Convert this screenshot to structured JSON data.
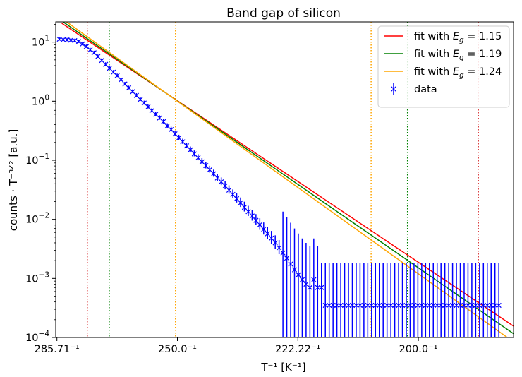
{
  "chart_data": {
    "type": "scatter",
    "title": "Band gap of silicon",
    "xlabel": "T⁻¹ [K⁻¹]",
    "ylabel": "counts · T⁻³ᐟ² [a.u.]",
    "x_ticks": [
      {
        "value": 0.0035,
        "label": "285.71⁻¹"
      },
      {
        "value": 0.004,
        "label": "250.0⁻¹"
      },
      {
        "value": 0.0045,
        "label": "222.22⁻¹"
      },
      {
        "value": 0.005,
        "label": "200.0⁻¹"
      }
    ],
    "y_ticks": [
      {
        "value": 0.0001,
        "base": "10",
        "exp": "−4"
      },
      {
        "value": 0.001,
        "base": "10",
        "exp": "−3"
      },
      {
        "value": 0.01,
        "base": "10",
        "exp": "−2"
      },
      {
        "value": 0.1,
        "base": "10",
        "exp": "−1"
      },
      {
        "value": 1,
        "base": "10",
        "exp": "0"
      },
      {
        "value": 10,
        "base": "10",
        "exp": "1"
      }
    ],
    "xlim": [
      0.003495,
      0.005395
    ],
    "ylim": [
      0.0001,
      22
    ],
    "yscale": "log",
    "grid": false,
    "legend_position": "top-right",
    "series": [
      {
        "name": "fit with E_g = 1.15",
        "kind": "line",
        "color": "#ff0000",
        "x": [
          0.00352,
          0.005395
        ],
        "y": [
          20.9,
          0.000156
        ]
      },
      {
        "name": "fit with E_g = 1.19",
        "kind": "line",
        "color": "#008000",
        "x": [
          0.00352,
          0.005395
        ],
        "y": [
          22.8,
          0.000116
        ]
      },
      {
        "name": "fit with E_g = 1.24",
        "kind": "line",
        "color": "#ffa500",
        "x": [
          0.00352,
          0.005395
        ],
        "y": [
          25.2,
          8.4e-05
        ]
      },
      {
        "name": "data",
        "kind": "errorbar",
        "color": "#0000ff",
        "x": [
          0.00351,
          0.003526,
          0.003542,
          0.003558,
          0.003574,
          0.00359,
          0.003606,
          0.003622,
          0.003638,
          0.003654,
          0.00367,
          0.003686,
          0.003702,
          0.003718,
          0.003734,
          0.00375,
          0.003766,
          0.003782,
          0.003798,
          0.003814,
          0.00383,
          0.003846,
          0.003862,
          0.003878,
          0.003894,
          0.00391,
          0.003926,
          0.003942,
          0.003958,
          0.003974,
          0.00399,
          0.004006,
          0.004022,
          0.004038,
          0.004054,
          0.00407,
          0.004086,
          0.004102,
          0.004118,
          0.004134,
          0.00415,
          0.004166,
          0.004182,
          0.004198,
          0.004214,
          0.00423,
          0.004246,
          0.004262,
          0.004278,
          0.004294,
          0.00431,
          0.004326,
          0.004342,
          0.004358,
          0.004374,
          0.00439,
          0.004406,
          0.004422,
          0.004438,
          0.004454,
          0.00447,
          0.004486,
          0.004502,
          0.004518,
          0.004534,
          0.00455,
          0.004566,
          0.004582,
          0.004598,
          0.004614,
          0.00463,
          0.004646,
          0.004662,
          0.004678,
          0.004694,
          0.00471,
          0.004726,
          0.004742,
          0.004758,
          0.004774,
          0.00479,
          0.004806,
          0.004822,
          0.004838,
          0.004854,
          0.00487,
          0.004886,
          0.004902,
          0.004918,
          0.004934,
          0.00495,
          0.004966,
          0.004982,
          0.004998,
          0.005014,
          0.00503,
          0.005046,
          0.005062,
          0.005078,
          0.005094,
          0.00511,
          0.005126,
          0.005142,
          0.005158,
          0.005174,
          0.00519,
          0.005206,
          0.005222,
          0.005238,
          0.005254,
          0.00527,
          0.005286,
          0.005302,
          0.005318,
          0.005334
        ],
        "y": [
          11.2,
          11.0,
          10.9,
          10.8,
          10.6,
          10.2,
          9.3,
          8.4,
          7.4,
          6.6,
          5.7,
          4.9,
          4.2,
          3.6,
          3.1,
          2.7,
          2.3,
          1.95,
          1.68,
          1.45,
          1.25,
          1.07,
          0.93,
          0.8,
          0.69,
          0.6,
          0.52,
          0.45,
          0.38,
          0.33,
          0.28,
          0.24,
          0.205,
          0.175,
          0.15,
          0.128,
          0.11,
          0.094,
          0.081,
          0.069,
          0.059,
          0.05,
          0.043,
          0.0368,
          0.0312,
          0.0264,
          0.0224,
          0.019,
          0.016,
          0.0135,
          0.0114,
          0.0096,
          0.0081,
          0.0068,
          0.0057,
          0.0048,
          0.004,
          0.0033,
          0.0027,
          0.0022,
          0.00175,
          0.0014,
          0.00115,
          0.00095,
          0.0008,
          0.0007,
          0.00095,
          0.0007,
          0.0007,
          0.00035,
          0.00035,
          0.00035,
          0.00035,
          0.00035,
          0.00035,
          0.00035,
          0.00035,
          0.00035,
          0.00035,
          0.00035,
          0.00035,
          0.00035,
          0.00035,
          0.00035,
          0.00035,
          0.00035,
          0.00035,
          0.00035,
          0.00035,
          0.00035,
          0.00035,
          0.00035,
          0.00035,
          0.00035,
          0.00035,
          0.00035,
          0.00035,
          0.00035,
          0.00035,
          0.00035,
          0.00035,
          0.00035,
          0.00035,
          0.00035,
          0.00035,
          0.00035,
          0.00035,
          0.00035,
          0.00035,
          0.00035,
          0.00035,
          0.00035,
          0.00035,
          0.00035,
          0.00035
        ],
        "yerr_low": [
          0.3,
          0.3,
          0.3,
          0.3,
          0.3,
          0.3,
          0.3,
          0.3,
          0.3,
          0.3,
          0.3,
          0.3,
          0.3,
          0.3,
          0.3,
          0.3,
          0.3,
          0.3,
          0.3,
          0.3,
          0.3,
          0.3,
          0.3,
          0.3,
          0.3,
          0.3,
          0.3,
          0.3,
          0.3,
          0.3,
          0.3,
          0.3,
          0.3,
          0.3,
          0.3,
          0.3,
          0.3,
          0.3,
          0.3,
          0.3,
          0.3,
          0.3,
          0.3,
          0.3,
          0.3,
          0.3,
          0.3,
          0.3,
          0.3,
          0.3,
          0.3,
          0.3,
          0.3,
          0.3,
          0.3,
          0.3,
          0.3,
          0.3,
          0.3,
          0.3,
          0.3,
          0.3,
          0.3,
          0.3,
          0.3,
          0.3,
          0.3,
          0.3,
          0.3,
          0.3,
          0.3,
          0.3,
          0.3,
          0.3,
          0.3,
          0.3,
          0.3,
          0.3,
          0.3,
          0.3,
          0.3,
          0.3,
          0.3,
          0.3,
          0.3,
          0.3,
          0.3,
          0.3,
          0.3,
          0.3,
          0.3,
          0.3,
          0.3,
          0.3,
          0.3,
          0.3,
          0.3,
          0.3,
          0.3,
          0.3,
          0.3,
          0.3,
          0.3,
          0.3,
          0.3,
          0.3,
          0.3,
          0.3,
          0.3,
          0.3,
          0.3,
          0.3,
          0.3,
          0.3,
          0.3,
          0.3
        ]
      }
    ],
    "vlines": [
      {
        "x": 0.003626,
        "color": "#d62728"
      },
      {
        "x": 0.003717,
        "color": "#008000"
      },
      {
        "x": 0.003992,
        "color": "#ffa500"
      },
      {
        "x": 0.004804,
        "color": "#ffa500"
      },
      {
        "x": 0.004955,
        "color": "#008000"
      },
      {
        "x": 0.005249,
        "color": "#d62728"
      }
    ]
  },
  "legend": {
    "items": [
      {
        "prefix": "fit with ",
        "sym": "E",
        "sub": "g",
        "suffix": " = 1.15",
        "color": "#ff0000",
        "kind": "line"
      },
      {
        "prefix": "fit with ",
        "sym": "E",
        "sub": "g",
        "suffix": " = 1.19",
        "color": "#008000",
        "kind": "line"
      },
      {
        "prefix": "fit with ",
        "sym": "E",
        "sub": "g",
        "suffix": " = 1.24",
        "color": "#ffa500",
        "kind": "line"
      },
      {
        "prefix": "data",
        "sym": "",
        "sub": "",
        "suffix": "",
        "color": "#0000ff",
        "kind": "errorbar"
      }
    ]
  }
}
